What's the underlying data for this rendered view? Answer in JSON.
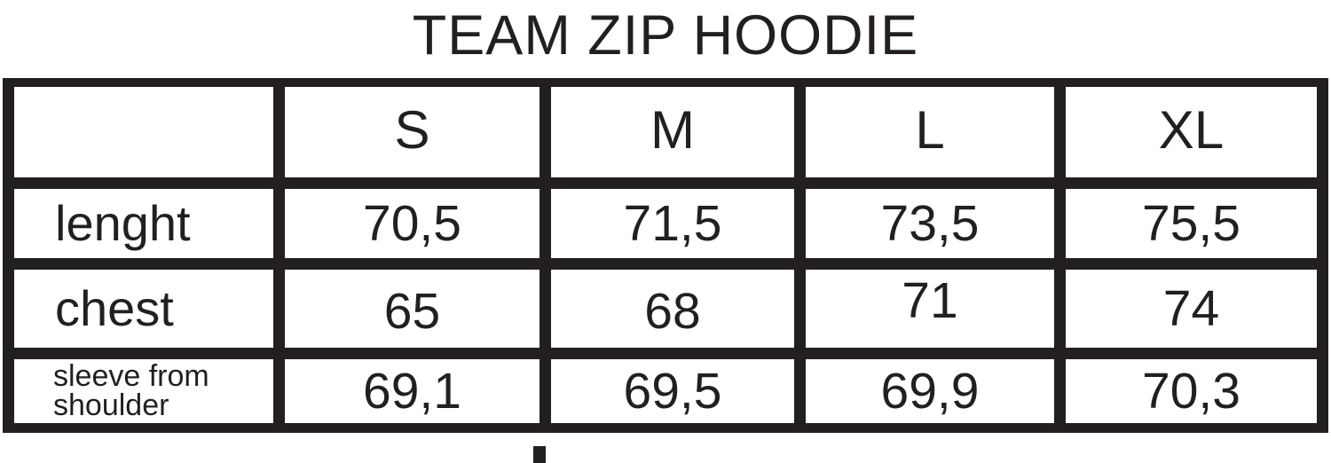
{
  "title": "TEAM ZIP HOODIE",
  "colors": {
    "ink": "#231f20",
    "background": "#ffffff"
  },
  "table": {
    "header": {
      "blank": "",
      "columns": [
        "S",
        "M",
        "L",
        "XL"
      ]
    },
    "rows": [
      {
        "label": "lenght",
        "values": [
          "70,5",
          "71,5",
          "73,5",
          "75,5"
        ]
      },
      {
        "label": "chest",
        "values": [
          "65",
          "68",
          "71",
          "74"
        ]
      },
      {
        "label": "sleeve from shoulder",
        "values": [
          "69,1",
          "69,5",
          "69,9",
          "70,3"
        ]
      }
    ]
  },
  "chart_data": {
    "type": "table",
    "title": "TEAM ZIP HOODIE",
    "categories": [
      "S",
      "M",
      "L",
      "XL"
    ],
    "series": [
      {
        "name": "lenght",
        "values": [
          70.5,
          71.5,
          73.5,
          75.5
        ]
      },
      {
        "name": "chest",
        "values": [
          65,
          68,
          71,
          74
        ]
      },
      {
        "name": "sleeve from shoulder",
        "values": [
          69.1,
          69.5,
          69.9,
          70.3
        ]
      }
    ],
    "decimal_separator": ","
  }
}
